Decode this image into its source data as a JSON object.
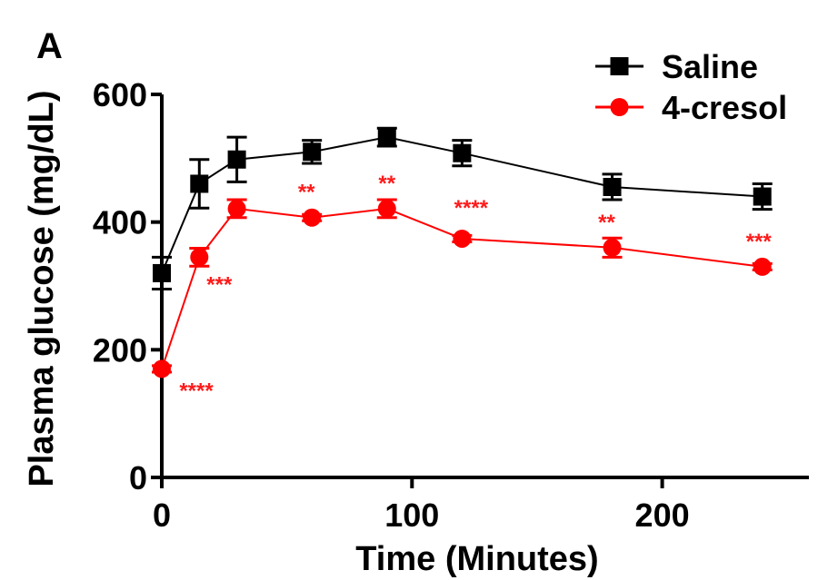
{
  "panel_label": "A",
  "chart_data": {
    "type": "line",
    "xlabel": "Time (Minutes)",
    "ylabel": "Plasma glucose (mg/dL)",
    "xlim": [
      0,
      255
    ],
    "ylim": [
      0,
      600
    ],
    "xticks": [
      0,
      100,
      200
    ],
    "yticks": [
      0,
      200,
      400,
      600
    ],
    "grid": false,
    "legend_position": "top-right",
    "series": [
      {
        "name": "Saline",
        "color": "#000000",
        "marker": "square",
        "x": [
          0,
          15,
          30,
          60,
          90,
          120,
          180,
          240
        ],
        "y": [
          320,
          460,
          498,
          510,
          533,
          508,
          455,
          440
        ],
        "error": [
          25,
          38,
          35,
          18,
          14,
          20,
          20,
          20
        ]
      },
      {
        "name": "4-cresol",
        "color": "#ff0000",
        "marker": "circle",
        "x": [
          0,
          15,
          30,
          60,
          90,
          120,
          180,
          240
        ],
        "y": [
          170,
          345,
          421,
          407,
          421,
          374,
          360,
          330
        ],
        "error": [
          5,
          14,
          14,
          5,
          14,
          5,
          15,
          5
        ],
        "significance": [
          "****",
          "***",
          "",
          "**",
          "**",
          "****",
          "**",
          "***"
        ]
      }
    ]
  }
}
